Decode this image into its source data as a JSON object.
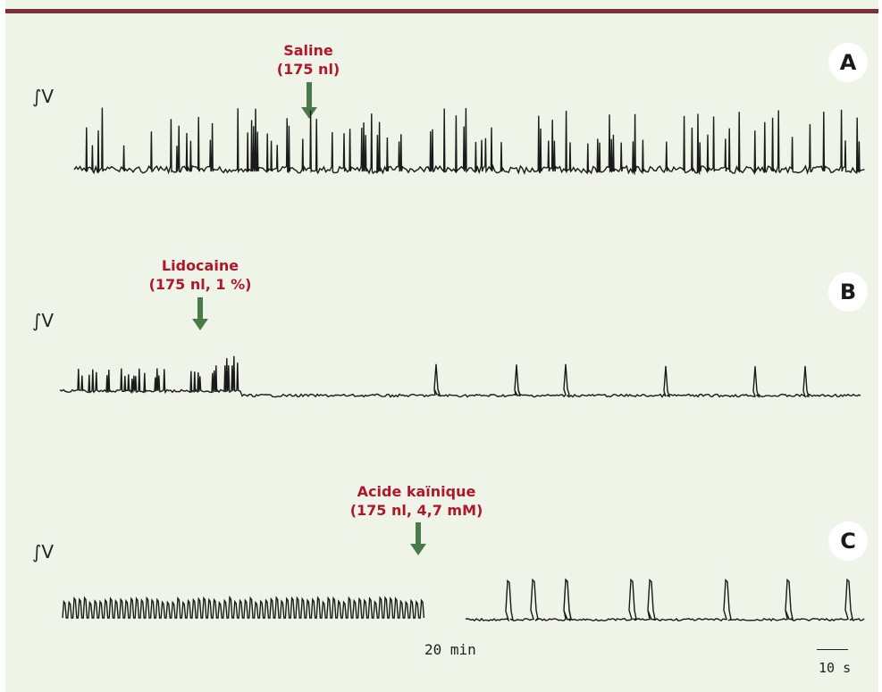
{
  "panels": [
    {
      "letter": "A",
      "axis_label": "∫V",
      "drug": "Saline",
      "dose": "(175 nl)"
    },
    {
      "letter": "B",
      "axis_label": "∫V",
      "drug": "Lidocaine",
      "dose": "(175 nl, 1 %)"
    },
    {
      "letter": "C",
      "axis_label": "∫V",
      "drug": "Acide kaïnique",
      "dose": "(175 nl, 4,7 mM)"
    }
  ],
  "time_gap_label": "20 min",
  "scale_bar_label": "10 s",
  "colors": {
    "background": "#eef4e7",
    "top_rule": "#7c2f3a",
    "label_red": "#b0172b",
    "arrow_green": "#4a7a4a",
    "trace": "#1a1a1a"
  }
}
